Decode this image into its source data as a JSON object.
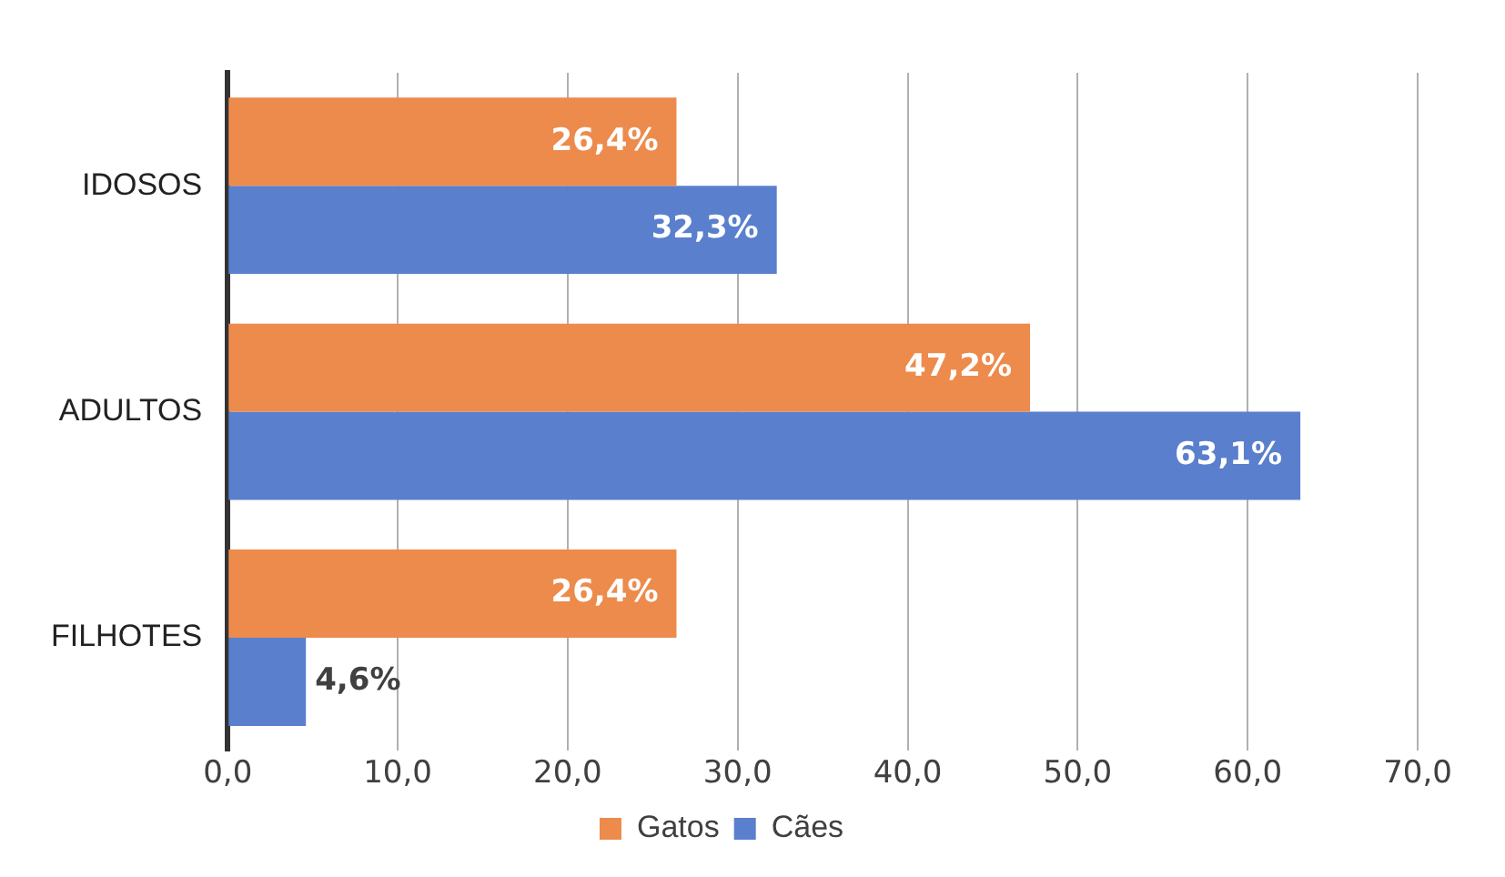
{
  "chart_data": {
    "type": "bar",
    "orientation": "horizontal",
    "categories": [
      "IDOSOS",
      "ADULTOS",
      "FILHOTES"
    ],
    "series": [
      {
        "name": "Gatos",
        "color": "#ed8b4c",
        "values": [
          26.4,
          47.2,
          26.4
        ],
        "value_labels": [
          "26,4%",
          "47,2%",
          "26,4%"
        ]
      },
      {
        "name": "Cães",
        "color": "#5a7fcd",
        "values": [
          32.3,
          63.1,
          4.6
        ],
        "value_labels": [
          "32,3%",
          "63,1%",
          "4,6%"
        ]
      }
    ],
    "xlim": [
      0,
      70
    ],
    "xticks": [
      {
        "value": 0,
        "label": "0,0"
      },
      {
        "value": 10,
        "label": "10,0"
      },
      {
        "value": 20,
        "label": "20,0"
      },
      {
        "value": 30,
        "label": "30,0"
      },
      {
        "value": 40,
        "label": "40,0"
      },
      {
        "value": 50,
        "label": "50,0"
      },
      {
        "value": 60,
        "label": "60,0"
      },
      {
        "value": 70,
        "label": "70,0"
      }
    ],
    "grid": "x",
    "legend": "bottom"
  }
}
